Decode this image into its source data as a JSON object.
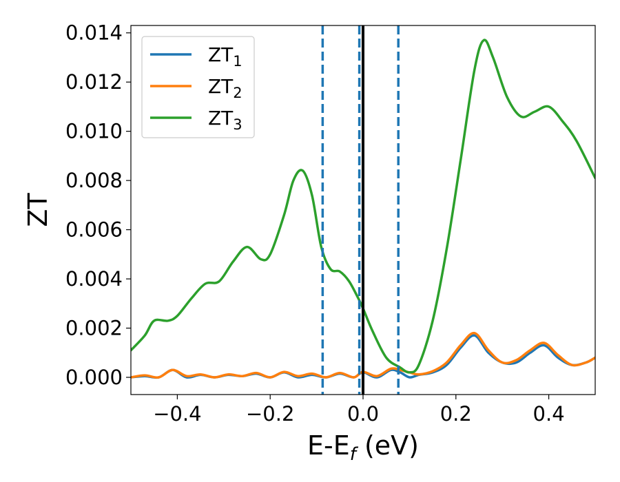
{
  "chart_data": {
    "type": "line",
    "xlabel": "E-E",
    "xlabel_sub": "f",
    "xlabel_unit": " (eV)",
    "ylabel": "ZT",
    "xlim": [
      -0.5,
      0.5
    ],
    "ylim": [
      -0.0007,
      0.0143
    ],
    "xticks": [
      -0.4,
      -0.2,
      0.0,
      0.2,
      0.4
    ],
    "xtick_labels": [
      "−0.4",
      "−0.2",
      "0.0",
      "0.2",
      "0.4"
    ],
    "yticks": [
      0.0,
      0.002,
      0.004,
      0.006,
      0.008,
      0.01,
      0.012,
      0.014
    ],
    "ytick_labels": [
      "0.000",
      "0.002",
      "0.004",
      "0.006",
      "0.008",
      "0.010",
      "0.012",
      "0.014"
    ],
    "grid": false,
    "legend_position": "top-left",
    "vlines": [
      {
        "x": -0.087,
        "style": "dashed",
        "color": "#1f77b4"
      },
      {
        "x": -0.008,
        "style": "dashed",
        "color": "#1f77b4"
      },
      {
        "x": 0.0,
        "style": "solid",
        "color": "#000000"
      },
      {
        "x": 0.076,
        "style": "dashed",
        "color": "#1f77b4"
      }
    ],
    "series": [
      {
        "name": "ZT",
        "sub": "1",
        "color": "#1f77b4",
        "x": [
          -0.5,
          -0.47,
          -0.44,
          -0.41,
          -0.38,
          -0.35,
          -0.32,
          -0.29,
          -0.26,
          -0.23,
          -0.2,
          -0.17,
          -0.14,
          -0.11,
          -0.08,
          -0.05,
          -0.02,
          0.0,
          0.03,
          0.06,
          0.08,
          0.1,
          0.12,
          0.15,
          0.18,
          0.21,
          0.24,
          0.27,
          0.3,
          0.33,
          0.36,
          0.39,
          0.42,
          0.45,
          0.48,
          0.5
        ],
        "y": [
          0.0,
          5e-05,
          0.0,
          0.0003,
          0.0,
          0.0001,
          0.0,
          0.0001,
          5e-05,
          0.00015,
          0.0,
          0.0002,
          0.0,
          0.0001,
          0.0,
          0.00015,
          0.0,
          0.0002,
          0.0,
          0.0003,
          0.0002,
          0.0,
          0.0001,
          0.0002,
          0.0005,
          0.0012,
          0.0017,
          0.001,
          0.0006,
          0.0006,
          0.001,
          0.0013,
          0.0008,
          0.0005,
          0.0006,
          0.0008
        ]
      },
      {
        "name": "ZT",
        "sub": "2",
        "color": "#ff7f0e",
        "x": [
          -0.5,
          -0.47,
          -0.44,
          -0.41,
          -0.38,
          -0.35,
          -0.32,
          -0.29,
          -0.26,
          -0.23,
          -0.2,
          -0.17,
          -0.14,
          -0.11,
          -0.08,
          -0.05,
          -0.02,
          0.0,
          0.03,
          0.06,
          0.08,
          0.1,
          0.12,
          0.15,
          0.18,
          0.21,
          0.24,
          0.27,
          0.3,
          0.33,
          0.36,
          0.39,
          0.42,
          0.45,
          0.48,
          0.5
        ],
        "y": [
          0.0,
          8e-05,
          0.0,
          0.0003,
          5e-05,
          0.00012,
          0.0,
          0.00012,
          5e-05,
          0.00018,
          0.0,
          0.00022,
          5e-05,
          0.00015,
          0.0,
          0.00018,
          0.0,
          0.00022,
          5e-05,
          0.00035,
          0.0003,
          0.0002,
          0.00012,
          0.00025,
          0.0006,
          0.0013,
          0.0018,
          0.0011,
          0.0006,
          0.0007,
          0.0011,
          0.0014,
          0.0009,
          0.0005,
          0.0006,
          0.0008
        ]
      },
      {
        "name": "ZT",
        "sub": "3",
        "color": "#2ca02c",
        "x": [
          -0.5,
          -0.47,
          -0.45,
          -0.42,
          -0.4,
          -0.37,
          -0.34,
          -0.31,
          -0.28,
          -0.25,
          -0.22,
          -0.2,
          -0.17,
          -0.15,
          -0.13,
          -0.11,
          -0.09,
          -0.07,
          -0.05,
          -0.03,
          -0.01,
          0.0,
          0.02,
          0.05,
          0.08,
          0.1,
          0.12,
          0.15,
          0.18,
          0.21,
          0.24,
          0.26,
          0.28,
          0.31,
          0.34,
          0.37,
          0.4,
          0.43,
          0.46,
          0.5
        ],
        "y": [
          0.0011,
          0.0017,
          0.0023,
          0.0023,
          0.0025,
          0.0032,
          0.0038,
          0.0039,
          0.0047,
          0.0053,
          0.0048,
          0.005,
          0.0066,
          0.008,
          0.0084,
          0.0074,
          0.0053,
          0.0044,
          0.0043,
          0.0039,
          0.0032,
          0.0028,
          0.0019,
          0.0008,
          0.0004,
          0.0002,
          0.0005,
          0.0023,
          0.0052,
          0.0088,
          0.0125,
          0.0137,
          0.013,
          0.0114,
          0.0106,
          0.0108,
          0.011,
          0.0104,
          0.0096,
          0.0081
        ]
      }
    ]
  }
}
